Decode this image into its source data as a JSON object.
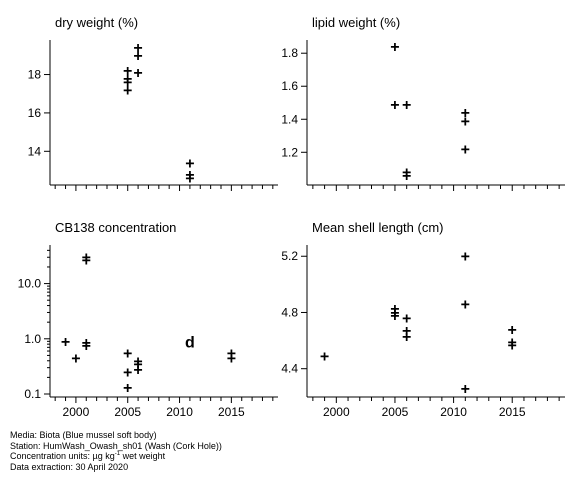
{
  "chart_data": [
    {
      "type": "scatter",
      "title": "dry weight (%)",
      "xlim": [
        1997.5,
        2019.5
      ],
      "ylim": [
        12.4,
        19.8
      ],
      "xticks": [],
      "yticks": [
        14,
        16,
        18
      ],
      "ytick_labels": [
        "14",
        "16",
        "18"
      ],
      "log_y": false,
      "points": [
        {
          "x": 2005,
          "y": 18.2
        },
        {
          "x": 2005,
          "y": 17.8
        },
        {
          "x": 2005,
          "y": 17.6
        },
        {
          "x": 2005,
          "y": 17.2
        },
        {
          "x": 2006,
          "y": 19.4
        },
        {
          "x": 2006,
          "y": 19.0
        },
        {
          "x": 2006,
          "y": 18.1
        },
        {
          "x": 2011,
          "y": 13.4
        },
        {
          "x": 2011,
          "y": 12.8
        },
        {
          "x": 2011,
          "y": 12.6
        }
      ]
    },
    {
      "type": "scatter",
      "title": "lipid weight (%)",
      "xlim": [
        1997.5,
        2019.5
      ],
      "ylim": [
        1.02,
        1.88
      ],
      "xticks": [],
      "yticks": [
        1.2,
        1.4,
        1.6,
        1.8
      ],
      "ytick_labels": [
        "1.2",
        "1.4",
        "1.6",
        "1.8"
      ],
      "log_y": false,
      "points": [
        {
          "x": 2005,
          "y": 1.84
        },
        {
          "x": 2005,
          "y": 1.49
        },
        {
          "x": 2006,
          "y": 1.49
        },
        {
          "x": 2006,
          "y": 1.08
        },
        {
          "x": 2006,
          "y": 1.06
        },
        {
          "x": 2011,
          "y": 1.44
        },
        {
          "x": 2011,
          "y": 1.39
        },
        {
          "x": 2011,
          "y": 1.22
        }
      ]
    },
    {
      "type": "scatter",
      "title": "CB138 concentration",
      "xlim": [
        1997.5,
        2019.5
      ],
      "ylim": [
        0.1,
        50
      ],
      "xticks": [
        2000,
        2005,
        2010,
        2015
      ],
      "xtick_labels": [
        "2000",
        "2005",
        "2010",
        "2015"
      ],
      "yticks": [
        0.1,
        1.0,
        10.0
      ],
      "ytick_labels": [
        "0.1",
        "1.0",
        "10.0"
      ],
      "log_y": true,
      "points": [
        {
          "x": 1999,
          "y": 0.9
        },
        {
          "x": 2000,
          "y": 0.45
        },
        {
          "x": 2001,
          "y": 30
        },
        {
          "x": 2001,
          "y": 27
        },
        {
          "x": 2001,
          "y": 0.85
        },
        {
          "x": 2001,
          "y": 0.75
        },
        {
          "x": 2005,
          "y": 0.55
        },
        {
          "x": 2005,
          "y": 0.25
        },
        {
          "x": 2005,
          "y": 0.13
        },
        {
          "x": 2006,
          "y": 0.4
        },
        {
          "x": 2006,
          "y": 0.35
        },
        {
          "x": 2006,
          "y": 0.28
        },
        {
          "x": 2015,
          "y": 0.55
        },
        {
          "x": 2015,
          "y": 0.45
        }
      ],
      "annotations": [
        {
          "x": 2011,
          "y": 0.9,
          "text": "d"
        }
      ]
    },
    {
      "type": "scatter",
      "title": "Mean shell length (cm)",
      "xlim": [
        1997.5,
        2019.5
      ],
      "ylim": [
        4.22,
        5.28
      ],
      "xticks": [
        2000,
        2005,
        2010,
        2015
      ],
      "xtick_labels": [
        "2000",
        "2005",
        "2010",
        "2015"
      ],
      "yticks": [
        4.4,
        4.8,
        5.2
      ],
      "ytick_labels": [
        "4.4",
        "4.8",
        "5.2"
      ],
      "log_y": false,
      "points": [
        {
          "x": 1999,
          "y": 4.49
        },
        {
          "x": 2005,
          "y": 4.83
        },
        {
          "x": 2005,
          "y": 4.8
        },
        {
          "x": 2005,
          "y": 4.78
        },
        {
          "x": 2006,
          "y": 4.76
        },
        {
          "x": 2006,
          "y": 4.67
        },
        {
          "x": 2006,
          "y": 4.63
        },
        {
          "x": 2011,
          "y": 5.2
        },
        {
          "x": 2011,
          "y": 4.86
        },
        {
          "x": 2011,
          "y": 4.26
        },
        {
          "x": 2015,
          "y": 4.68
        },
        {
          "x": 2015,
          "y": 4.59
        },
        {
          "x": 2015,
          "y": 4.57
        }
      ]
    }
  ],
  "caption": {
    "media": "Media: Biota (Blue mussel soft body)",
    "station": "Station: HumWash_Owash_sh01 (Wash (Cork Hole))",
    "units_prefix": "Concentration units:  µg kg",
    "units_sup": "-1",
    "units_suffix": " wet weight",
    "extraction": "Data extraction: 30 April 2020"
  },
  "marker": "+"
}
